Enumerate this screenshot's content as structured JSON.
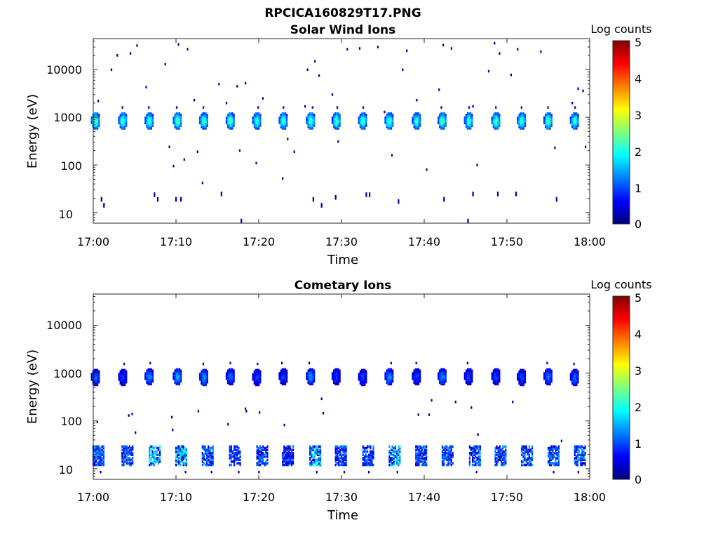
{
  "figure": {
    "title": "RPCICA160829T17.PNG"
  },
  "colormap": {
    "stops": [
      "#00007f",
      "#0000ff",
      "#007fff",
      "#00ffff",
      "#7fff7f",
      "#ffff00",
      "#ff7f00",
      "#ff0000",
      "#7f0000"
    ]
  },
  "chart_data": [
    {
      "type": "heatmap",
      "title": "Solar Wind Ions",
      "xlabel": "Time",
      "ylabel": "Energy (eV)",
      "x_ticks": [
        "17:00",
        "17:10",
        "17:20",
        "17:30",
        "17:40",
        "17:50",
        "18:00"
      ],
      "x_range_minutes": [
        0,
        60
      ],
      "y_scale": "log",
      "y_ticks": [
        "10",
        "100",
        "1000",
        "10000"
      ],
      "ylim": [
        6,
        45000
      ],
      "colorbar": {
        "label": "Log counts",
        "range": [
          0,
          5
        ],
        "ticks": [
          "0",
          "1",
          "2",
          "3",
          "4",
          "5"
        ]
      },
      "bursts": [
        {
          "t": 0.3,
          "e": 850,
          "peak": 2.6
        },
        {
          "t": 3.6,
          "e": 850,
          "peak": 2.5
        },
        {
          "t": 6.8,
          "e": 850,
          "peak": 2.5
        },
        {
          "t": 10.2,
          "e": 850,
          "peak": 2.6
        },
        {
          "t": 13.4,
          "e": 850,
          "peak": 2.5
        },
        {
          "t": 16.6,
          "e": 850,
          "peak": 2.6
        },
        {
          "t": 19.8,
          "e": 850,
          "peak": 2.5
        },
        {
          "t": 23.0,
          "e": 850,
          "peak": 2.5
        },
        {
          "t": 26.3,
          "e": 850,
          "peak": 2.6
        },
        {
          "t": 29.4,
          "e": 850,
          "peak": 2.5
        },
        {
          "t": 32.6,
          "e": 850,
          "peak": 2.5
        },
        {
          "t": 35.8,
          "e": 850,
          "peak": 2.6
        },
        {
          "t": 39.1,
          "e": 850,
          "peak": 2.5
        },
        {
          "t": 42.2,
          "e": 850,
          "peak": 2.6
        },
        {
          "t": 45.4,
          "e": 850,
          "peak": 2.5
        },
        {
          "t": 48.7,
          "e": 850,
          "peak": 2.6
        },
        {
          "t": 51.8,
          "e": 850,
          "peak": 2.5
        },
        {
          "t": 55.0,
          "e": 850,
          "peak": 2.6
        },
        {
          "t": 58.2,
          "e": 850,
          "peak": 2.5
        }
      ],
      "low_energy_streaks": [
        {
          "t": 1.0,
          "e": 20
        },
        {
          "t": 1.3,
          "e": 15
        },
        {
          "t": 7.4,
          "e": 25
        },
        {
          "t": 7.8,
          "e": 20
        },
        {
          "t": 10.0,
          "e": 20
        },
        {
          "t": 10.6,
          "e": 20
        },
        {
          "t": 15.5,
          "e": 26
        },
        {
          "t": 17.9,
          "e": 7
        },
        {
          "t": 26.6,
          "e": 20
        },
        {
          "t": 27.6,
          "e": 15
        },
        {
          "t": 29.3,
          "e": 22
        },
        {
          "t": 33.0,
          "e": 25
        },
        {
          "t": 33.4,
          "e": 25
        },
        {
          "t": 36.9,
          "e": 18
        },
        {
          "t": 42.4,
          "e": 20
        },
        {
          "t": 45.3,
          "e": 7
        },
        {
          "t": 45.9,
          "e": 26
        },
        {
          "t": 48.9,
          "e": 26
        },
        {
          "t": 51.1,
          "e": 26
        },
        {
          "t": 56.0,
          "e": 20
        }
      ],
      "scatter_points": [
        {
          "t": 0.6,
          "e": 2200
        },
        {
          "t": 2.2,
          "e": 10000
        },
        {
          "t": 2.9,
          "e": 20000
        },
        {
          "t": 4.5,
          "e": 22000
        },
        {
          "t": 5.3,
          "e": 32000
        },
        {
          "t": 6.4,
          "e": 4300
        },
        {
          "t": 8.7,
          "e": 13000
        },
        {
          "t": 9.2,
          "e": 240
        },
        {
          "t": 9.7,
          "e": 95
        },
        {
          "t": 10.3,
          "e": 34000
        },
        {
          "t": 11.0,
          "e": 130
        },
        {
          "t": 11.4,
          "e": 27000
        },
        {
          "t": 12.2,
          "e": 2300
        },
        {
          "t": 12.6,
          "e": 190
        },
        {
          "t": 13.2,
          "e": 42
        },
        {
          "t": 15.2,
          "e": 5000
        },
        {
          "t": 16.1,
          "e": 2000
        },
        {
          "t": 17.4,
          "e": 4500
        },
        {
          "t": 17.7,
          "e": 200
        },
        {
          "t": 18.4,
          "e": 5200
        },
        {
          "t": 19.7,
          "e": 110
        },
        {
          "t": 20.5,
          "e": 2500
        },
        {
          "t": 22.9,
          "e": 52
        },
        {
          "t": 23.5,
          "e": 350
        },
        {
          "t": 24.3,
          "e": 190
        },
        {
          "t": 25.6,
          "e": 1700
        },
        {
          "t": 25.9,
          "e": 10000
        },
        {
          "t": 26.8,
          "e": 15000
        },
        {
          "t": 27.3,
          "e": 7500
        },
        {
          "t": 28.9,
          "e": 3000
        },
        {
          "t": 29.6,
          "e": 310
        },
        {
          "t": 30.7,
          "e": 27000
        },
        {
          "t": 32.2,
          "e": 28000
        },
        {
          "t": 34.4,
          "e": 30000
        },
        {
          "t": 35.2,
          "e": 1300
        },
        {
          "t": 36.1,
          "e": 160
        },
        {
          "t": 37.4,
          "e": 10000
        },
        {
          "t": 37.9,
          "e": 25000
        },
        {
          "t": 39.1,
          "e": 2300
        },
        {
          "t": 40.3,
          "e": 80
        },
        {
          "t": 41.8,
          "e": 3800
        },
        {
          "t": 42.3,
          "e": 33000
        },
        {
          "t": 43.3,
          "e": 28000
        },
        {
          "t": 45.9,
          "e": 1700
        },
        {
          "t": 46.4,
          "e": 100
        },
        {
          "t": 47.8,
          "e": 9300
        },
        {
          "t": 48.5,
          "e": 36000
        },
        {
          "t": 49.1,
          "e": 22000
        },
        {
          "t": 50.5,
          "e": 7800
        },
        {
          "t": 51.3,
          "e": 27000
        },
        {
          "t": 54.1,
          "e": 24000
        },
        {
          "t": 55.8,
          "e": 230
        },
        {
          "t": 57.9,
          "e": 2000
        },
        {
          "t": 58.6,
          "e": 4000
        },
        {
          "t": 59.2,
          "e": 3600
        },
        {
          "t": 59.5,
          "e": 240
        }
      ]
    },
    {
      "type": "heatmap",
      "title": "Cometary Ions",
      "xlabel": "Time",
      "ylabel": "Energy (eV)",
      "x_ticks": [
        "17:00",
        "17:10",
        "17:20",
        "17:30",
        "17:40",
        "17:50",
        "18:00"
      ],
      "x_range_minutes": [
        0,
        60
      ],
      "y_scale": "log",
      "y_ticks": [
        "10",
        "100",
        "1000",
        "10000"
      ],
      "ylim": [
        6,
        45000
      ],
      "colorbar": {
        "label": "Log counts",
        "range": [
          0,
          5
        ],
        "ticks": [
          "0",
          "1",
          "2",
          "3",
          "4",
          "5"
        ]
      },
      "bursts": [
        {
          "t": 0.3,
          "e": 820,
          "peak": 1.2
        },
        {
          "t": 3.6,
          "e": 820,
          "peak": 1.0
        },
        {
          "t": 6.8,
          "e": 850,
          "peak": 1.5
        },
        {
          "t": 10.2,
          "e": 850,
          "peak": 1.6
        },
        {
          "t": 13.4,
          "e": 820,
          "peak": 1.5
        },
        {
          "t": 16.6,
          "e": 850,
          "peak": 1.3
        },
        {
          "t": 19.8,
          "e": 820,
          "peak": 1.0
        },
        {
          "t": 23.0,
          "e": 850,
          "peak": 1.0
        },
        {
          "t": 26.3,
          "e": 850,
          "peak": 1.5
        },
        {
          "t": 29.4,
          "e": 850,
          "peak": 1.0
        },
        {
          "t": 32.6,
          "e": 820,
          "peak": 1.0
        },
        {
          "t": 35.8,
          "e": 850,
          "peak": 1.5
        },
        {
          "t": 39.1,
          "e": 850,
          "peak": 1.0
        },
        {
          "t": 42.2,
          "e": 850,
          "peak": 1.5
        },
        {
          "t": 45.4,
          "e": 850,
          "peak": 1.0
        },
        {
          "t": 48.7,
          "e": 850,
          "peak": 1.0
        },
        {
          "t": 51.8,
          "e": 820,
          "peak": 1.0
        },
        {
          "t": 55.0,
          "e": 850,
          "peak": 1.3
        },
        {
          "t": 58.2,
          "e": 820,
          "peak": 1.2
        }
      ],
      "low_energy_clusters": [
        {
          "t": 0.7,
          "peak": 1.5
        },
        {
          "t": 4.2,
          "peak": 1.3
        },
        {
          "t": 7.5,
          "peak": 2.0
        },
        {
          "t": 10.7,
          "peak": 2.0
        },
        {
          "t": 13.9,
          "peak": 1.5
        },
        {
          "t": 17.2,
          "peak": 1.3
        },
        {
          "t": 20.5,
          "peak": 1.3
        },
        {
          "t": 23.6,
          "peak": 1.2
        },
        {
          "t": 26.9,
          "peak": 2.0
        },
        {
          "t": 30.0,
          "peak": 1.3
        },
        {
          "t": 33.3,
          "peak": 1.3
        },
        {
          "t": 36.5,
          "peak": 2.0
        },
        {
          "t": 39.7,
          "peak": 1.5
        },
        {
          "t": 42.9,
          "peak": 1.3
        },
        {
          "t": 46.2,
          "peak": 1.5
        },
        {
          "t": 49.3,
          "peak": 1.5
        },
        {
          "t": 52.5,
          "peak": 1.6
        },
        {
          "t": 55.7,
          "peak": 1.5
        },
        {
          "t": 58.9,
          "peak": 1.5
        }
      ],
      "scatter_points": [
        {
          "t": 0.5,
          "e": 95
        },
        {
          "t": 4.3,
          "e": 130
        },
        {
          "t": 4.7,
          "e": 140
        },
        {
          "t": 5.1,
          "e": 57
        },
        {
          "t": 9.5,
          "e": 120
        },
        {
          "t": 9.6,
          "e": 65
        },
        {
          "t": 12.7,
          "e": 160
        },
        {
          "t": 16.3,
          "e": 85
        },
        {
          "t": 18.4,
          "e": 180
        },
        {
          "t": 18.5,
          "e": 160
        },
        {
          "t": 20.1,
          "e": 150
        },
        {
          "t": 23.1,
          "e": 82
        },
        {
          "t": 27.6,
          "e": 290
        },
        {
          "t": 27.8,
          "e": 145
        },
        {
          "t": 39.3,
          "e": 135
        },
        {
          "t": 40.6,
          "e": 135
        },
        {
          "t": 40.9,
          "e": 270
        },
        {
          "t": 43.8,
          "e": 250
        },
        {
          "t": 45.7,
          "e": 190
        },
        {
          "t": 46.5,
          "e": 52
        },
        {
          "t": 50.7,
          "e": 250
        },
        {
          "t": 56.6,
          "e": 38
        }
      ]
    }
  ]
}
